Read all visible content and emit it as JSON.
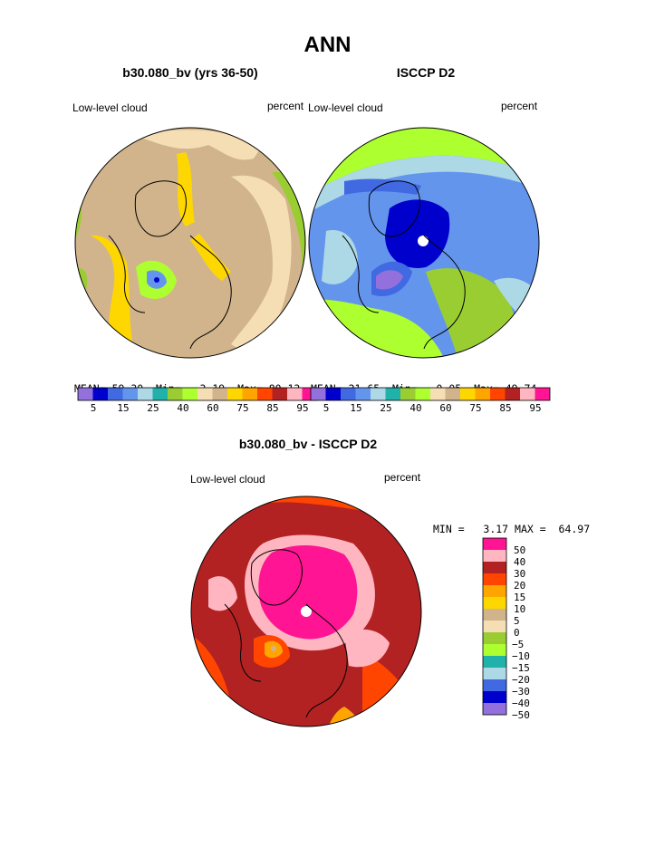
{
  "page": {
    "title": "ANN"
  },
  "colors": {
    "ramp": [
      "#9370db",
      "#0000cd",
      "#4169e1",
      "#6495ed",
      "#add8e6",
      "#20b2aa",
      "#9acd32",
      "#adff2f",
      "#f5deb3",
      "#d2b48c",
      "#ffd700",
      "#ffa500",
      "#ff4500",
      "#b22222",
      "#ffb6c1",
      "#ff1493"
    ]
  },
  "chart_data": [
    {
      "type": "heatmap",
      "title": "b30.080_bv (yrs 36-50)",
      "variable_label": "Low-level cloud",
      "units_label": "percent",
      "stats": {
        "mean_label": "MEAN=",
        "mean": "59.30",
        "min_label": "Min=",
        "min": "3.19",
        "max_label": "Max=",
        "max": "80.13"
      },
      "colorbar": {
        "orientation": "horizontal",
        "tick_labels": [
          "5",
          "15",
          "25",
          "40",
          "60",
          "75",
          "85",
          "95"
        ]
      }
    },
    {
      "type": "heatmap",
      "title": "ISCCP D2",
      "variable_label": "Low-level cloud",
      "units_label": "percent",
      "stats": {
        "mean_label": "MEAN=",
        "mean": "21.65",
        "min_label": "Min=",
        "min": "0.05",
        "max_label": "Max=",
        "max": "49.74"
      },
      "colorbar": {
        "orientation": "horizontal",
        "tick_labels": [
          "5",
          "15",
          "25",
          "40",
          "60",
          "75",
          "85",
          "95"
        ]
      }
    },
    {
      "type": "heatmap",
      "title": "b30.080_bv - ISCCP D2",
      "variable_label": "Low-level cloud",
      "units_label": "percent",
      "stats": {
        "min_label": "MIN =",
        "min": "3.17",
        "max_label": "MAX =",
        "max": "64.97"
      },
      "colorbar": {
        "orientation": "vertical",
        "tick_labels": [
          "50",
          "40",
          "30",
          "20",
          "15",
          "10",
          "5",
          "0",
          "−5",
          "−10",
          "−15",
          "−20",
          "−30",
          "−40",
          "−50"
        ]
      }
    }
  ]
}
